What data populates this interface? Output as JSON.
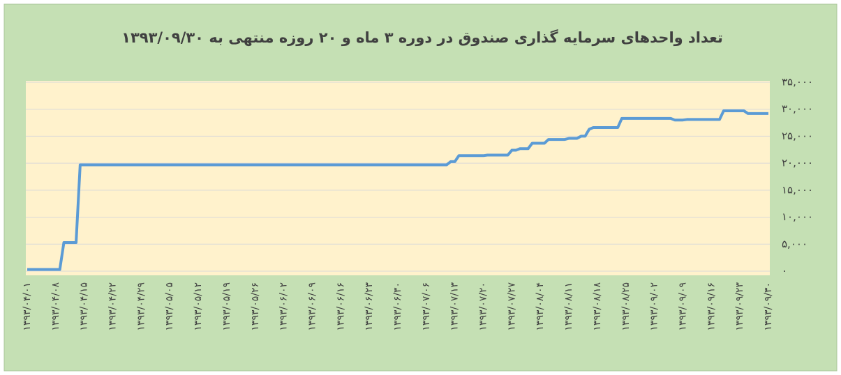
{
  "chart_data": {
    "type": "line",
    "title": "تعداد واحدهای سرمایه گذاری صندوق در دوره ۳ ماه و ۲۰ روزه منتهی به ۱۳۹۳/۰۹/۳۰",
    "categories": [
      "۱۳۹۳/۰۴/۰۱",
      null,
      null,
      null,
      null,
      null,
      null,
      "۱۳۹۳/۰۴/۰۸",
      null,
      null,
      null,
      null,
      null,
      null,
      "۱۳۹۳/۰۴/۱۵",
      null,
      null,
      null,
      null,
      null,
      null,
      "۱۳۹۳/۰۴/۲۲",
      null,
      null,
      null,
      null,
      null,
      null,
      "۱۳۹۳/۰۴/۲۹",
      null,
      null,
      null,
      null,
      null,
      null,
      "۱۳۹۳/۰۵/۰۵",
      null,
      null,
      null,
      null,
      null,
      null,
      "۱۳۹۳/۰۵/۱۲",
      null,
      null,
      null,
      null,
      null,
      null,
      "۱۳۹۳/۰۵/۱۹",
      null,
      null,
      null,
      null,
      null,
      null,
      "۱۳۹۳/۰۵/۲۶",
      null,
      null,
      null,
      null,
      null,
      null,
      "۱۳۹۳/۰۶/۰۲",
      null,
      null,
      null,
      null,
      null,
      null,
      "۱۳۹۳/۰۶/۰۹",
      null,
      null,
      null,
      null,
      null,
      null,
      "۱۳۹۳/۰۶/۱۶",
      null,
      null,
      null,
      null,
      null,
      null,
      "۱۳۹۳/۰۶/۲۳",
      null,
      null,
      null,
      null,
      null,
      null,
      "۱۳۹۳/۰۶/۳۰",
      null,
      null,
      null,
      null,
      null,
      null,
      "۱۳۹۳/۰۷/۰۶",
      null,
      null,
      null,
      null,
      null,
      null,
      "۱۳۹۳/۰۷/۱۳",
      null,
      null,
      null,
      null,
      null,
      null,
      "۱۳۹۳/۰۷/۲۰",
      null,
      null,
      null,
      null,
      null,
      null,
      "۱۳۹۳/۰۷/۲۷",
      null,
      null,
      null,
      null,
      null,
      null,
      "۱۳۹۳/۰۸/۰۴",
      null,
      null,
      null,
      null,
      null,
      null,
      "۱۳۹۳/۰۸/۱۱",
      null,
      null,
      null,
      null,
      null,
      null,
      "۱۳۹۳/۰۸/۱۸",
      null,
      null,
      null,
      null,
      null,
      null,
      "۱۳۹۳/۰۸/۲۵",
      null,
      null,
      null,
      null,
      null,
      null,
      "۱۳۹۳/۰۹/۰۲",
      null,
      null,
      null,
      null,
      null,
      null,
      "۱۳۹۳/۰۹/۰۹",
      null,
      null,
      null,
      null,
      null,
      null,
      "۱۳۹۳/۰۹/۱۶",
      null,
      null,
      null,
      null,
      null,
      null,
      "۱۳۹۳/۰۹/۲۳",
      null,
      null,
      null,
      null,
      null,
      null,
      "۱۳۹۳/۰۹/۳۰"
    ],
    "values": [
      300,
      300,
      300,
      300,
      300,
      300,
      300,
      300,
      300,
      5300,
      5300,
      5300,
      5300,
      19700,
      19700,
      19700,
      19700,
      19700,
      19700,
      19700,
      19700,
      19700,
      19700,
      19700,
      19700,
      19700,
      19700,
      19700,
      19700,
      19700,
      19700,
      19700,
      19700,
      19700,
      19700,
      19700,
      19700,
      19700,
      19700,
      19700,
      19700,
      19700,
      19700,
      19700,
      19700,
      19700,
      19700,
      19700,
      19700,
      19700,
      19700,
      19700,
      19700,
      19700,
      19700,
      19700,
      19700,
      19700,
      19700,
      19700,
      19700,
      19700,
      19700,
      19700,
      19700,
      19700,
      19700,
      19700,
      19700,
      19700,
      19700,
      19700,
      19700,
      19700,
      19700,
      19700,
      19700,
      19700,
      19700,
      19700,
      19700,
      19700,
      19700,
      19700,
      19700,
      19700,
      19700,
      19700,
      19700,
      19700,
      19700,
      19700,
      19700,
      19700,
      19700,
      19700,
      19700,
      19700,
      19700,
      19700,
      19700,
      19700,
      19700,
      19700,
      20300,
      20300,
      21400,
      21400,
      21400,
      21400,
      21400,
      21400,
      21400,
      21500,
      21500,
      21500,
      21500,
      21500,
      21500,
      22400,
      22400,
      22700,
      22700,
      22700,
      23700,
      23700,
      23700,
      23700,
      24400,
      24400,
      24400,
      24400,
      24400,
      24600,
      24600,
      24600,
      25000,
      25000,
      26300,
      26600,
      26600,
      26600,
      26600,
      26600,
      26600,
      26600,
      28300,
      28300,
      28300,
      28300,
      28300,
      28300,
      28300,
      28300,
      28300,
      28300,
      28300,
      28300,
      28300,
      28000,
      28000,
      28000,
      28100,
      28100,
      28100,
      28100,
      28100,
      28100,
      28100,
      28100,
      28100,
      29700,
      29700,
      29700,
      29700,
      29700,
      29700,
      29200,
      29200,
      29200,
      29200,
      29200,
      29200
    ],
    "color": "#5b9bd5",
    "ylim": [
      0,
      35000
    ],
    "yticks": [
      {
        "value": 0,
        "label": "۰"
      },
      {
        "value": 5000,
        "label": "۵,۰۰۰"
      },
      {
        "value": 10000,
        "label": "۱۰,۰۰۰"
      },
      {
        "value": 15000,
        "label": "۱۵,۰۰۰"
      },
      {
        "value": 20000,
        "label": "۲۰,۰۰۰"
      },
      {
        "value": 25000,
        "label": "۲۵,۰۰۰"
      },
      {
        "value": 30000,
        "label": "۳۰,۰۰۰"
      },
      {
        "value": 35000,
        "label": "۳۵,۰۰۰"
      }
    ],
    "grid": true
  }
}
